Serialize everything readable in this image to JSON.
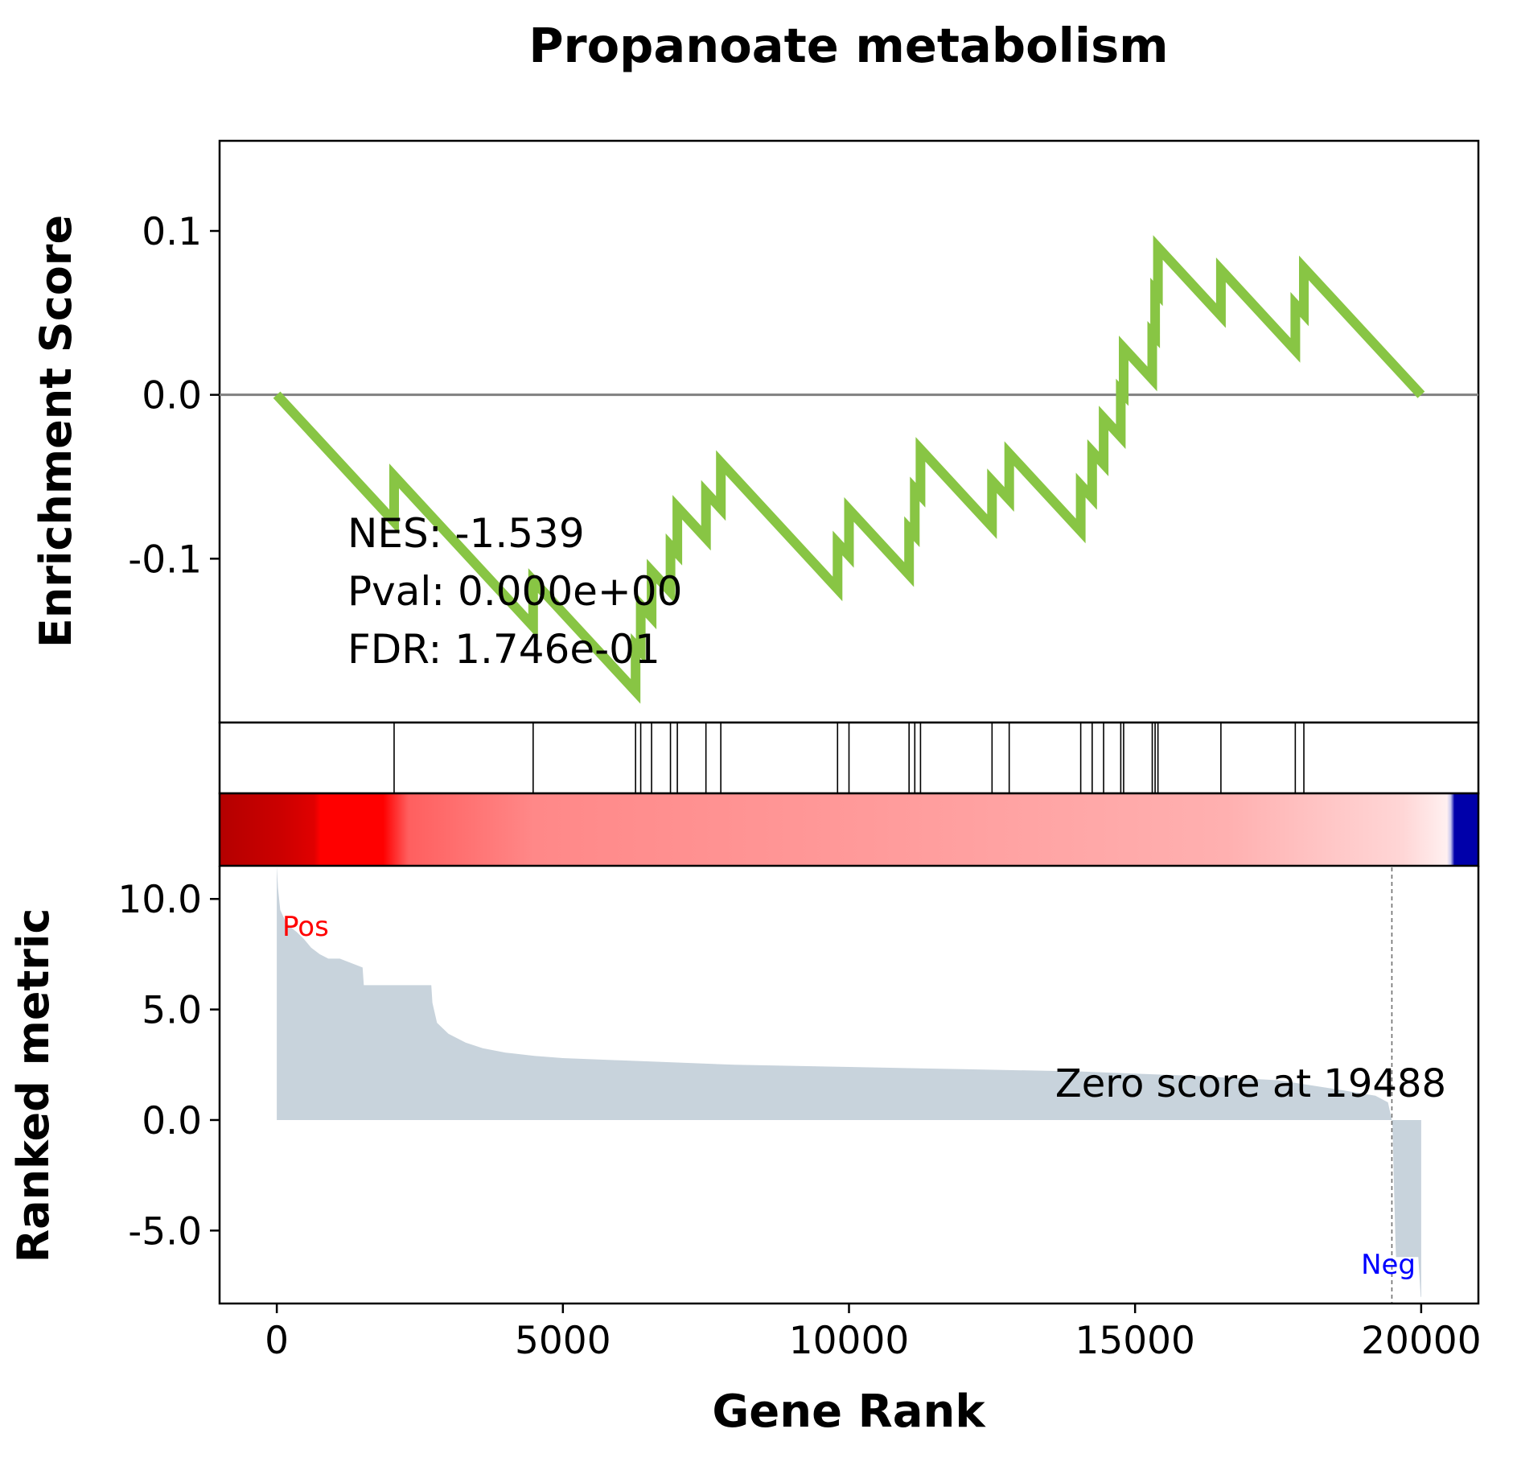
{
  "chart_data": {
    "type": "line",
    "title": "Propanoate metabolism",
    "es_panel": {
      "ylabel": "Enrichment Score",
      "ylim": [
        -0.2,
        0.155
      ],
      "yticks": [
        -0.1,
        0.0,
        0.1
      ],
      "ytick_labels": [
        "-0.1",
        "0.0",
        "0.1"
      ],
      "zero_line": 0.0,
      "color": "#88c544",
      "stats": [
        {
          "label": "NES: -1.539"
        },
        {
          "label": "Pval: 0.000e+00"
        },
        {
          "label": "FDR: 1.746e-01"
        }
      ],
      "hits": [
        2050,
        4480,
        6270,
        6360,
        6550,
        6880,
        7000,
        7500,
        7760,
        9800,
        10000,
        11050,
        11150,
        11250,
        12500,
        12800,
        14050,
        14250,
        14450,
        14750,
        14800,
        15300,
        15350,
        15400,
        16500,
        17800,
        17950
      ],
      "hit_jump": 0.028,
      "start_rank": 0,
      "end_rank": 20000
    },
    "ranking_bar": {
      "stops": [
        {
          "pos": 0.0,
          "color": "#b40000"
        },
        {
          "pos": 0.05,
          "color": "#cc0000"
        },
        {
          "pos": 0.075,
          "color": "#e00000"
        },
        {
          "pos": 0.08,
          "color": "#ff0000"
        },
        {
          "pos": 0.13,
          "color": "#ff0000"
        },
        {
          "pos": 0.15,
          "color": "#ff5f5f"
        },
        {
          "pos": 0.25,
          "color": "#ff8888"
        },
        {
          "pos": 0.5,
          "color": "#ff9999"
        },
        {
          "pos": 0.8,
          "color": "#ffb0b0"
        },
        {
          "pos": 0.94,
          "color": "#ffd6d6"
        },
        {
          "pos": 0.975,
          "color": "#fff0f0"
        },
        {
          "pos": 0.978,
          "color": "#c8c8f0"
        },
        {
          "pos": 0.981,
          "color": "#0000aa"
        },
        {
          "pos": 1.0,
          "color": "#0000aa"
        }
      ]
    },
    "metric_panel": {
      "xlabel": "Gene Rank",
      "ylabel": "Ranked metric",
      "xlim": [
        -1000,
        21000
      ],
      "ylim": [
        -8.3,
        11.5
      ],
      "xticks": [
        0,
        5000,
        10000,
        15000,
        20000
      ],
      "xtick_labels": [
        "0",
        "5000",
        "10000",
        "15000",
        "20000"
      ],
      "yticks": [
        -5.0,
        0.0,
        5.0,
        10.0
      ],
      "ytick_labels": [
        "-5.0",
        "0.0",
        "5.0",
        "10.0"
      ],
      "fill_color": "#c8d3dc",
      "zero_score_rank": 19488,
      "zero_score_label": "Zero score at 19488",
      "pos_label": "Pos",
      "neg_label": "Neg",
      "pos_color": "#ff0000",
      "neg_color": "#0000ff",
      "metric_curve": [
        [
          0,
          11.5
        ],
        [
          20,
          10.5
        ],
        [
          60,
          9.5
        ],
        [
          150,
          9.0
        ],
        [
          250,
          8.7
        ],
        [
          350,
          8.5
        ],
        [
          470,
          8.2
        ],
        [
          600,
          7.8
        ],
        [
          750,
          7.5
        ],
        [
          900,
          7.3
        ],
        [
          1100,
          7.3
        ],
        [
          1500,
          6.9
        ],
        [
          1520,
          6.1
        ],
        [
          2700,
          6.1
        ],
        [
          2720,
          5.3
        ],
        [
          2800,
          4.4
        ],
        [
          3000,
          3.9
        ],
        [
          3300,
          3.5
        ],
        [
          3600,
          3.25
        ],
        [
          4000,
          3.05
        ],
        [
          4500,
          2.9
        ],
        [
          5000,
          2.8
        ],
        [
          6000,
          2.7
        ],
        [
          7000,
          2.6
        ],
        [
          8000,
          2.5
        ],
        [
          10000,
          2.4
        ],
        [
          12000,
          2.3
        ],
        [
          14000,
          2.2
        ],
        [
          16000,
          2.0
        ],
        [
          17500,
          1.8
        ],
        [
          18500,
          1.4
        ],
        [
          19200,
          1.1
        ],
        [
          19420,
          0.8
        ],
        [
          19488,
          0.0
        ],
        [
          19500,
          -0.3
        ],
        [
          19520,
          -2.5
        ],
        [
          19550,
          -5.5
        ],
        [
          19560,
          -6.2
        ],
        [
          19950,
          -6.2
        ],
        [
          19970,
          -7.0
        ],
        [
          19990,
          -8.0
        ],
        [
          20000,
          -8.0
        ]
      ]
    }
  }
}
